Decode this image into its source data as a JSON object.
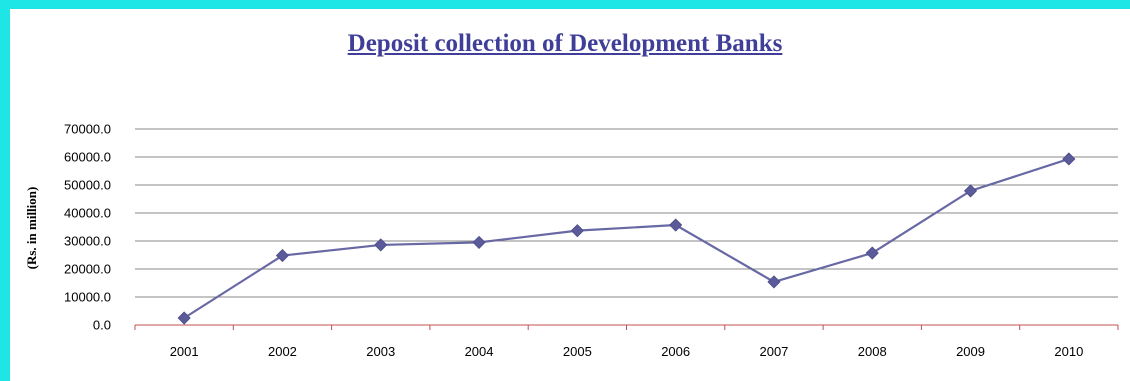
{
  "chart_data": {
    "type": "line",
    "title": "Deposit collection of Development Banks",
    "xlabel": "",
    "ylabel": "(Rs. in million)",
    "ylim": [
      0,
      70000
    ],
    "yticks": [
      "0.0",
      "10000.0",
      "20000.0",
      "30000.0",
      "40000.0",
      "50000.0",
      "60000.0",
      "70000.0"
    ],
    "categories": [
      "2001",
      "2002",
      "2003",
      "2004",
      "2005",
      "2006",
      "2007",
      "2008",
      "2009",
      "2010"
    ],
    "series": [
      {
        "values": [
          2500,
          24800,
          28600,
          29500,
          33700,
          35700,
          15400,
          25700,
          47900,
          59300
        ]
      }
    ],
    "grid": true,
    "legend": "none",
    "colors": {
      "line": "#6868a4",
      "marker": "#5b5b9a",
      "grid": "#8a8a8a",
      "axis": "#c0504d",
      "border": "#1fe6e6"
    }
  }
}
